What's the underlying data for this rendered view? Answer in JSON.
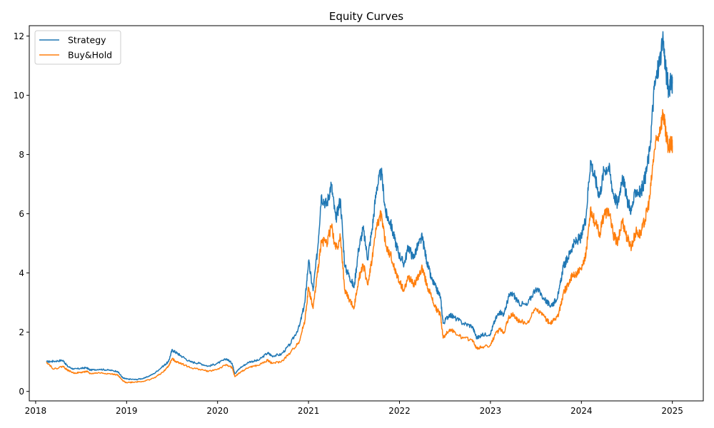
{
  "chart_data": {
    "type": "line",
    "title": "Equity Curves",
    "xlabel": "",
    "ylabel": "",
    "xlim": [
      2017.93,
      2025.34
    ],
    "ylim": [
      -0.32,
      12.35
    ],
    "xticks": [
      2018,
      2019,
      2020,
      2021,
      2022,
      2023,
      2024,
      2025
    ],
    "xtick_labels": [
      "2018",
      "2019",
      "2020",
      "2021",
      "2022",
      "2023",
      "2024",
      "2025"
    ],
    "yticks": [
      0,
      2,
      4,
      6,
      8,
      10,
      12
    ],
    "ytick_labels": [
      "0",
      "2",
      "4",
      "6",
      "8",
      "10",
      "12"
    ],
    "grid": false,
    "legend": "top-left",
    "series": [
      {
        "name": "Strategy",
        "color": "#1f77b4",
        "x": [
          2018.12,
          2018.2,
          2018.3,
          2018.35,
          2018.42,
          2018.5,
          2018.56,
          2018.6,
          2018.7,
          2018.8,
          2018.9,
          2018.96,
          2019.0,
          2019.1,
          2019.2,
          2019.3,
          2019.4,
          2019.46,
          2019.5,
          2019.55,
          2019.6,
          2019.7,
          2019.8,
          2019.9,
          2020.0,
          2020.1,
          2020.16,
          2020.19,
          2020.25,
          2020.35,
          2020.45,
          2020.55,
          2020.6,
          2020.7,
          2020.8,
          2020.9,
          2020.96,
          2021.0,
          2021.05,
          2021.1,
          2021.14,
          2021.2,
          2021.25,
          2021.3,
          2021.35,
          2021.4,
          2021.45,
          2021.5,
          2021.55,
          2021.6,
          2021.65,
          2021.7,
          2021.75,
          2021.8,
          2021.85,
          2021.9,
          2021.95,
          2022.0,
          2022.05,
          2022.1,
          2022.15,
          2022.2,
          2022.25,
          2022.3,
          2022.35,
          2022.4,
          2022.45,
          2022.48,
          2022.55,
          2022.6,
          2022.7,
          2022.8,
          2022.85,
          2022.9,
          2023.0,
          2023.05,
          2023.1,
          2023.15,
          2023.2,
          2023.25,
          2023.3,
          2023.4,
          2023.5,
          2023.6,
          2023.65,
          2023.7,
          2023.75,
          2023.8,
          2023.85,
          2023.9,
          2023.95,
          2024.0,
          2024.05,
          2024.1,
          2024.15,
          2024.2,
          2024.25,
          2024.3,
          2024.35,
          2024.4,
          2024.45,
          2024.5,
          2024.55,
          2024.6,
          2024.65,
          2024.7,
          2024.75,
          2024.8,
          2024.85,
          2024.9,
          2024.93,
          2024.96,
          2024.99,
          2025.0
        ],
        "y": [
          1.0,
          1.02,
          1.05,
          0.85,
          0.75,
          0.78,
          0.8,
          0.72,
          0.75,
          0.72,
          0.68,
          0.45,
          0.42,
          0.4,
          0.45,
          0.6,
          0.85,
          1.0,
          1.4,
          1.3,
          1.2,
          1.0,
          0.95,
          0.85,
          0.95,
          1.1,
          0.95,
          0.6,
          0.8,
          1.0,
          1.05,
          1.3,
          1.2,
          1.25,
          1.6,
          2.2,
          3.0,
          4.4,
          3.4,
          4.8,
          6.6,
          6.3,
          7.0,
          5.8,
          6.5,
          4.2,
          3.9,
          3.5,
          4.8,
          5.5,
          4.5,
          5.5,
          6.9,
          7.4,
          6.0,
          5.7,
          5.1,
          4.6,
          4.3,
          4.9,
          4.5,
          4.9,
          5.2,
          4.4,
          3.8,
          3.5,
          3.2,
          2.3,
          2.6,
          2.5,
          2.3,
          2.2,
          1.8,
          1.9,
          1.95,
          2.4,
          2.7,
          2.6,
          3.2,
          3.3,
          3.0,
          2.9,
          3.5,
          3.1,
          2.9,
          3.0,
          3.3,
          4.2,
          4.5,
          4.9,
          5.1,
          5.2,
          5.9,
          7.8,
          7.2,
          6.6,
          7.5,
          7.6,
          6.7,
          6.3,
          7.3,
          6.5,
          6.1,
          6.8,
          6.7,
          7.2,
          8.1,
          10.2,
          11.0,
          11.8,
          10.8,
          10.2,
          10.5,
          10.4
        ]
      },
      {
        "name": "Buy&Hold",
        "color": "#ff7f0e",
        "x": [
          2018.12,
          2018.2,
          2018.3,
          2018.35,
          2018.42,
          2018.5,
          2018.56,
          2018.6,
          2018.7,
          2018.8,
          2018.9,
          2018.96,
          2019.0,
          2019.1,
          2019.2,
          2019.3,
          2019.4,
          2019.46,
          2019.5,
          2019.55,
          2019.6,
          2019.7,
          2019.8,
          2019.9,
          2020.0,
          2020.1,
          2020.16,
          2020.19,
          2020.25,
          2020.35,
          2020.45,
          2020.55,
          2020.6,
          2020.7,
          2020.8,
          2020.9,
          2020.96,
          2021.0,
          2021.05,
          2021.1,
          2021.14,
          2021.2,
          2021.25,
          2021.3,
          2021.35,
          2021.4,
          2021.45,
          2021.5,
          2021.55,
          2021.6,
          2021.65,
          2021.7,
          2021.75,
          2021.8,
          2021.85,
          2021.9,
          2021.95,
          2022.0,
          2022.05,
          2022.1,
          2022.15,
          2022.2,
          2022.25,
          2022.3,
          2022.35,
          2022.4,
          2022.45,
          2022.48,
          2022.55,
          2022.6,
          2022.7,
          2022.8,
          2022.85,
          2022.9,
          2023.0,
          2023.05,
          2023.1,
          2023.15,
          2023.2,
          2023.25,
          2023.3,
          2023.4,
          2023.5,
          2023.6,
          2023.65,
          2023.7,
          2023.75,
          2023.8,
          2023.85,
          2023.9,
          2023.95,
          2024.0,
          2024.05,
          2024.1,
          2024.15,
          2024.2,
          2024.25,
          2024.3,
          2024.35,
          2024.4,
          2024.45,
          2024.5,
          2024.55,
          2024.6,
          2024.65,
          2024.7,
          2024.75,
          2024.8,
          2024.85,
          2024.9,
          2024.93,
          2024.96,
          2024.99,
          2025.0
        ],
        "y": [
          1.0,
          0.75,
          0.85,
          0.72,
          0.62,
          0.64,
          0.68,
          0.6,
          0.63,
          0.6,
          0.56,
          0.35,
          0.3,
          0.32,
          0.35,
          0.45,
          0.65,
          0.85,
          1.1,
          1.0,
          0.95,
          0.8,
          0.75,
          0.68,
          0.75,
          0.9,
          0.8,
          0.5,
          0.65,
          0.82,
          0.88,
          1.05,
          0.95,
          1.0,
          1.3,
          1.7,
          2.4,
          3.5,
          2.8,
          4.0,
          5.1,
          5.0,
          5.6,
          4.8,
          5.2,
          3.4,
          3.1,
          2.8,
          3.8,
          4.3,
          3.6,
          4.5,
          5.6,
          6.0,
          4.9,
          4.6,
          4.1,
          3.7,
          3.4,
          3.9,
          3.6,
          3.8,
          4.2,
          3.6,
          3.2,
          2.8,
          2.6,
          1.8,
          2.1,
          2.0,
          1.8,
          1.75,
          1.45,
          1.5,
          1.55,
          1.9,
          2.1,
          2.0,
          2.5,
          2.6,
          2.4,
          2.3,
          2.8,
          2.5,
          2.3,
          2.4,
          2.6,
          3.3,
          3.6,
          3.9,
          4.0,
          4.1,
          4.6,
          6.2,
          5.7,
          5.3,
          6.0,
          6.1,
          5.3,
          5.0,
          5.8,
          5.2,
          4.9,
          5.4,
          5.3,
          5.8,
          6.5,
          8.1,
          8.7,
          9.4,
          8.6,
          8.2,
          8.4,
          8.3
        ]
      }
    ]
  }
}
